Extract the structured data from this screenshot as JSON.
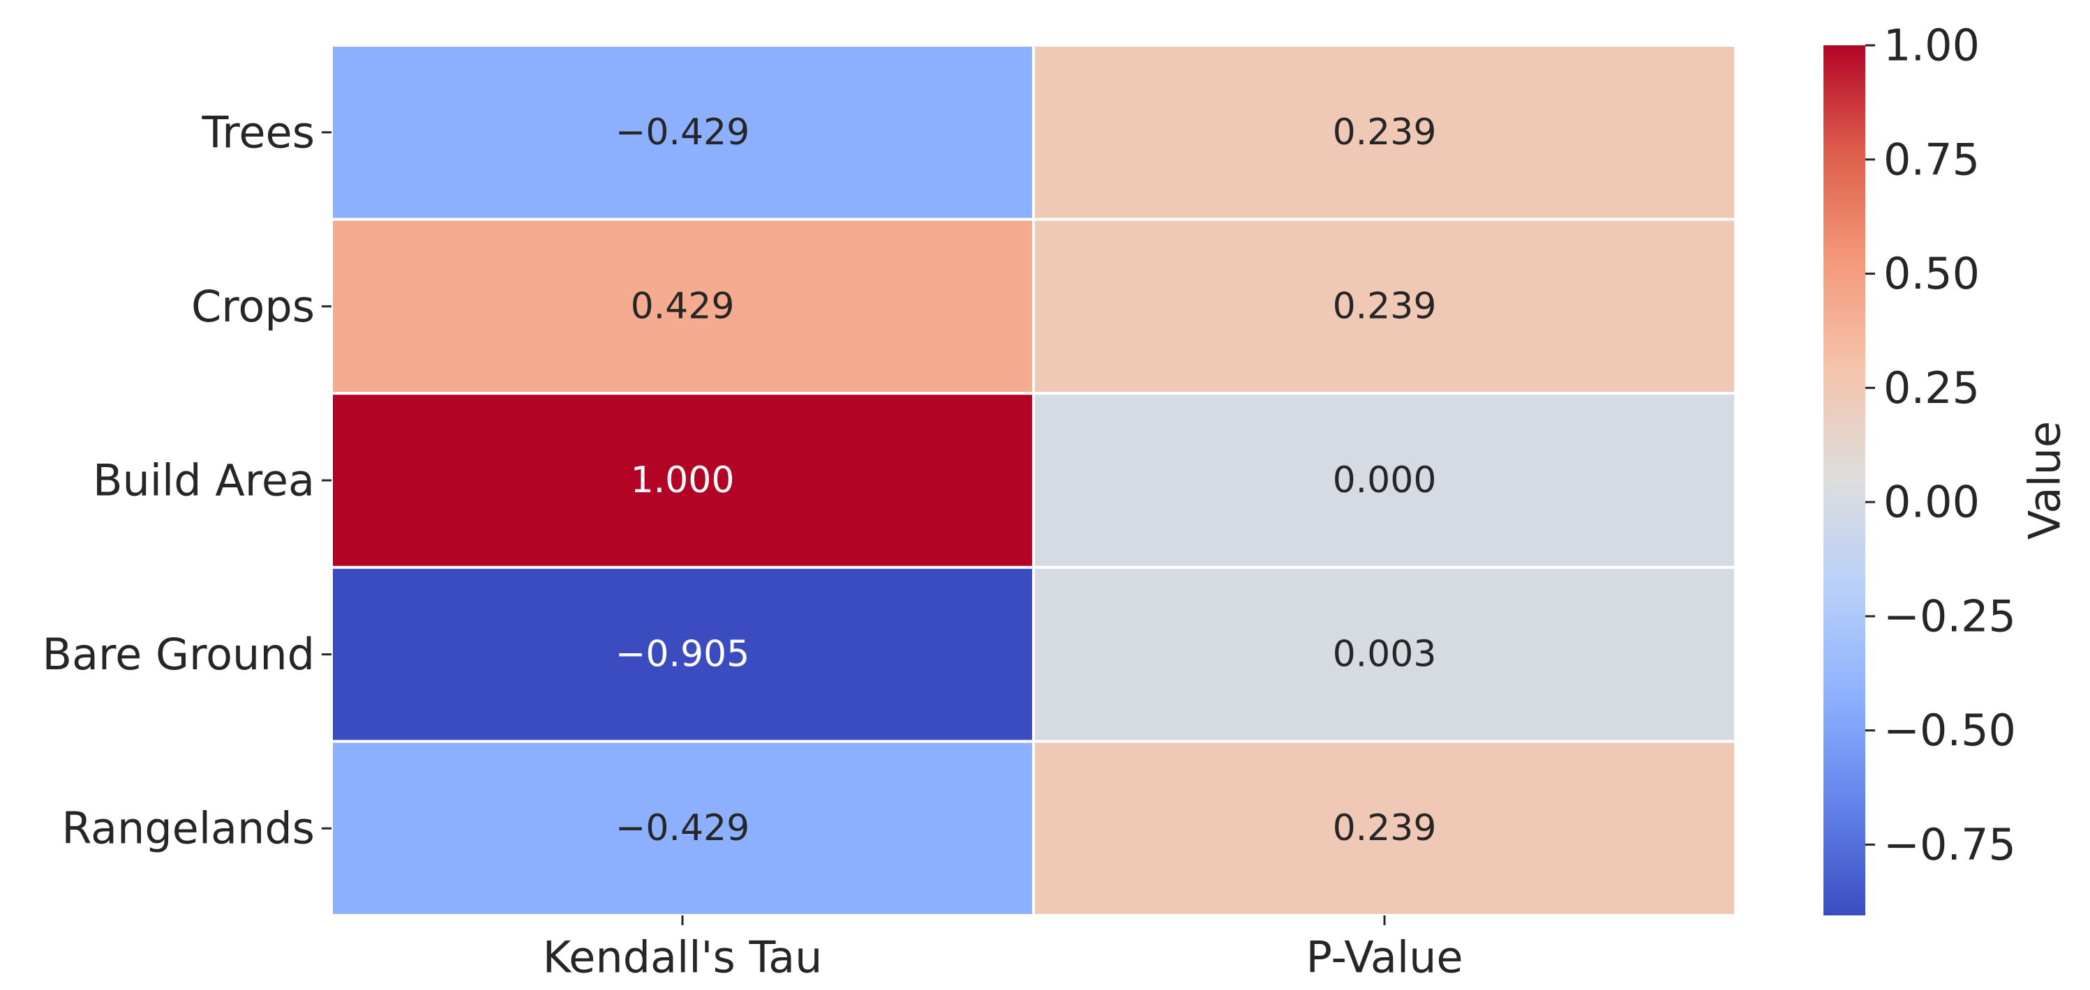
{
  "chart_data": {
    "type": "heatmap",
    "rows": [
      "Trees",
      "Crops",
      "Build Area",
      "Bare Ground",
      "Rangelands"
    ],
    "columns": [
      "Kendall's Tau",
      "P-Value"
    ],
    "values": [
      [
        -0.429,
        0.239
      ],
      [
        0.429,
        0.239
      ],
      [
        1.0,
        0.0
      ],
      [
        -0.905,
        0.003
      ],
      [
        -0.429,
        0.239
      ]
    ],
    "cell_labels": [
      [
        "−0.429",
        "0.239"
      ],
      [
        "0.429",
        "0.239"
      ],
      [
        "1.000",
        "0.000"
      ],
      [
        "−0.905",
        "0.003"
      ],
      [
        "−0.429",
        "0.239"
      ]
    ],
    "colormap": "coolwarm",
    "vmin": -0.905,
    "vmax": 1.0,
    "colorbar": {
      "label": "Value",
      "ticks": [
        1.0,
        0.75,
        0.5,
        0.25,
        0.0,
        -0.25,
        -0.5,
        -0.75
      ],
      "tick_labels": [
        "1.00",
        "0.75",
        "0.50",
        "0.25",
        "0.00",
        "−0.25",
        "−0.50",
        "−0.75"
      ]
    },
    "colors": {
      "cell_border": "#ffffff",
      "text_dark": "#262626",
      "text_light": "#ffffff"
    }
  }
}
